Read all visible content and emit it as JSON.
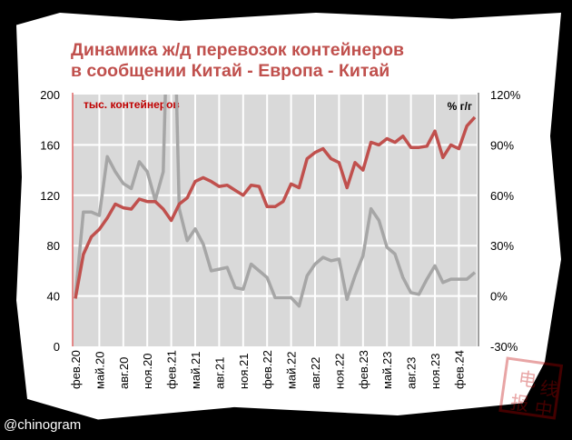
{
  "title": [
    "Динамика ж/д перевозок контейнеров",
    "в сообщении Китай - Европа - Китай"
  ],
  "watermark": "@chinogram",
  "stamp_text": "电线报中",
  "chart_data": {
    "type": "line",
    "title": "Динамика ж/д перевозок контейнеров в сообщении Китай - Европа - Китай",
    "left_axis_label": "тыс. контейнеров",
    "right_axis_label": "% г/г",
    "ylim_left": [
      0,
      200
    ],
    "ylim_right": [
      -30,
      120
    ],
    "left_ticks": [
      "0",
      "40",
      "80",
      "120",
      "160",
      "200"
    ],
    "right_ticks": [
      "-30%",
      "0%",
      "30%",
      "60%",
      "90%",
      "120%"
    ],
    "x_tick_labels": [
      "фев.20",
      "май.20",
      "авг.20",
      "ноя.20",
      "фев.21",
      "май.21",
      "авг.21",
      "ноя.21",
      "фев.22",
      "май.22",
      "авг.22",
      "ноя.22",
      "фев.23",
      "май.23",
      "авг.23",
      "ноя.23",
      "фев.24"
    ],
    "x_tick_every_months": 3,
    "grid": true,
    "series": [
      {
        "name": "тыс. контейнеров",
        "axis": "left",
        "color": "#c0504d",
        "values": [
          38,
          73,
          87,
          93,
          102,
          113,
          110,
          109,
          117,
          115,
          115,
          109,
          100,
          113,
          118,
          131,
          134,
          131,
          127,
          128,
          124,
          120,
          128,
          127,
          111,
          111,
          115,
          129,
          126,
          149,
          154,
          157,
          149,
          146,
          126,
          146,
          140,
          162,
          160,
          165,
          162,
          167,
          158,
          158,
          159,
          171,
          150,
          160,
          157,
          175,
          182
        ]
      },
      {
        "name": "% г/г",
        "axis": "right",
        "color": "#a6a6a6",
        "values": [
          -1,
          50,
          50,
          48,
          83,
          74,
          67,
          64,
          80,
          74,
          57,
          74,
          250,
          52,
          33,
          40,
          31,
          15,
          16,
          17,
          5,
          4,
          19,
          15,
          11,
          -1,
          -1,
          -1,
          -6,
          12,
          19,
          23,
          21,
          22,
          -2,
          12,
          24,
          52,
          45,
          29,
          25,
          11,
          2,
          1,
          10,
          18,
          8,
          10,
          10,
          10,
          14
        ]
      }
    ]
  }
}
